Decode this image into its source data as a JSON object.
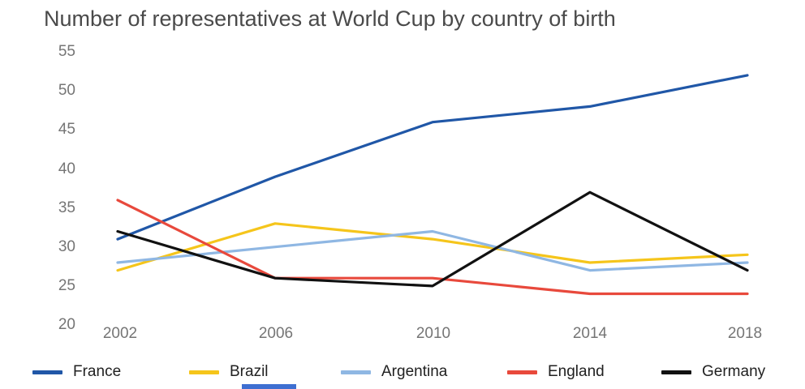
{
  "title": "Number of representatives at World Cup by country of birth",
  "chart_data": {
    "type": "line",
    "categories": [
      "2002",
      "2006",
      "2010",
      "2014",
      "2018"
    ],
    "series": [
      {
        "name": "France",
        "color": "#2057a7",
        "values": [
          31,
          39,
          46,
          48,
          52
        ]
      },
      {
        "name": "Brazil",
        "color": "#f5c51b",
        "values": [
          27,
          33,
          31,
          28,
          29
        ]
      },
      {
        "name": "Argentina",
        "color": "#8fb7e3",
        "values": [
          28,
          30,
          32,
          27,
          28
        ]
      },
      {
        "name": "England",
        "color": "#e8493c",
        "values": [
          36,
          26,
          26,
          24,
          24
        ]
      },
      {
        "name": "Germany",
        "color": "#111111",
        "values": [
          32,
          26,
          25,
          37,
          27
        ]
      }
    ],
    "title": "Number of representatives at World Cup by country of birth",
    "xlabel": "",
    "ylabel": "",
    "ylim": [
      20,
      55
    ],
    "y_ticks": [
      "55",
      "50",
      "45",
      "40",
      "35",
      "30",
      "25",
      "20"
    ],
    "grid": false,
    "legend_position": "bottom"
  },
  "decorations": {
    "bottom_bar_color": "#3e6fd1"
  }
}
